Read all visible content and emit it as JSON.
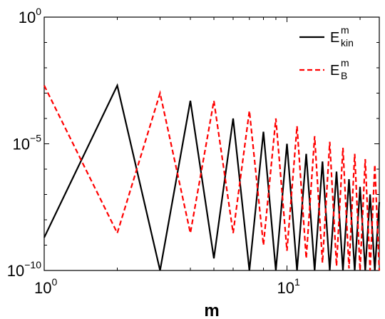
{
  "chart_data": {
    "type": "line",
    "title": "",
    "xlabel": "m",
    "ylabel": "",
    "xscale": "log",
    "yscale": "log",
    "xlim": [
      1,
      24
    ],
    "ylim": [
      1e-10,
      1
    ],
    "x_ticks": [
      {
        "value": 1,
        "base": "10",
        "exp": "0"
      },
      {
        "value": 10,
        "base": "10",
        "exp": "1"
      }
    ],
    "y_ticks": [
      {
        "value": 1,
        "base": "10",
        "exp": "0"
      },
      {
        "value": 1e-05,
        "base": "10",
        "exp": "−5"
      },
      {
        "value": 1e-10,
        "base": "10",
        "exp": "−10"
      }
    ],
    "grid": false,
    "legend_position": "top-right",
    "series": [
      {
        "name": "E",
        "name_sup": "m",
        "name_sub": "kin",
        "color": "#000000",
        "dash": "solid",
        "x": [
          1,
          2,
          3,
          4,
          5,
          6,
          7,
          8,
          9,
          10,
          11,
          12,
          13,
          14,
          15,
          16,
          17,
          18,
          19,
          20,
          21,
          22,
          23,
          24
        ],
        "y": [
          2e-09,
          0.002,
          1e-10,
          0.0005,
          3e-10,
          0.0001,
          1e-10,
          3e-05,
          1e-10,
          1e-05,
          1e-10,
          4e-06,
          1e-10,
          2e-06,
          1e-10,
          8e-07,
          1e-10,
          4e-07,
          1e-10,
          2e-07,
          1e-10,
          1e-07,
          1e-10,
          5e-08
        ]
      },
      {
        "name": "E",
        "name_sup": "m",
        "name_sub": "B",
        "color": "#ff0000",
        "dash": "dashed",
        "x": [
          1,
          2,
          3,
          4,
          5,
          6,
          7,
          8,
          9,
          10,
          11,
          12,
          13,
          14,
          15,
          16,
          17,
          18,
          19,
          20,
          21,
          22,
          23,
          24
        ],
        "y": [
          0.002,
          3e-09,
          0.001,
          3e-09,
          0.0005,
          3e-09,
          0.0002,
          1e-09,
          0.0001,
          6e-10,
          5e-05,
          3e-10,
          2e-05,
          2e-10,
          1.2e-05,
          1.5e-10,
          7e-06,
          1.2e-10,
          4e-06,
          1e-10,
          2.5e-06,
          1e-10,
          1.5e-06,
          1e-10
        ]
      }
    ]
  }
}
